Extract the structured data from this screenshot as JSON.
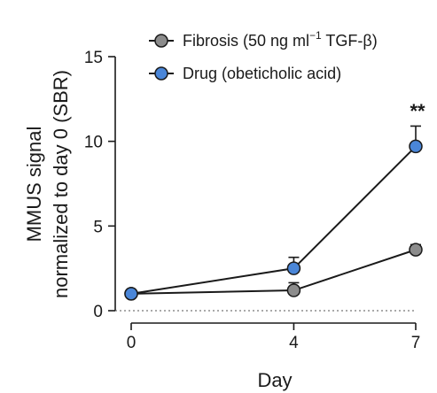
{
  "chart_data": {
    "type": "line",
    "xlabel": "Day",
    "ylabel_lines": [
      "MMUS signal",
      "normalized to day 0 (SBR)"
    ],
    "x": [
      0,
      4,
      7
    ],
    "x_ticks": [
      "0",
      "4",
      "7"
    ],
    "xlim": [
      0,
      7
    ],
    "ylim": [
      0,
      15
    ],
    "y_ticks": [
      "0",
      "5",
      "10",
      "15"
    ],
    "grid": false,
    "legend_position": "top",
    "series": [
      {
        "name": "Fibrosis (50 ng ml",
        "name_sup": "−1",
        "name_tail": " TGF-β)",
        "color": "#8c8c8c",
        "values": [
          1.0,
          1.2,
          3.6
        ],
        "errors": [
          0.1,
          0.45,
          0.3
        ]
      },
      {
        "name": "Drug (obeticholic acid)",
        "color": "#4a86d8",
        "values": [
          1.0,
          2.5,
          9.7
        ],
        "errors": [
          0.1,
          0.65,
          1.2
        ]
      }
    ],
    "annotations": [
      {
        "text": "**",
        "x": 7
      }
    ]
  }
}
